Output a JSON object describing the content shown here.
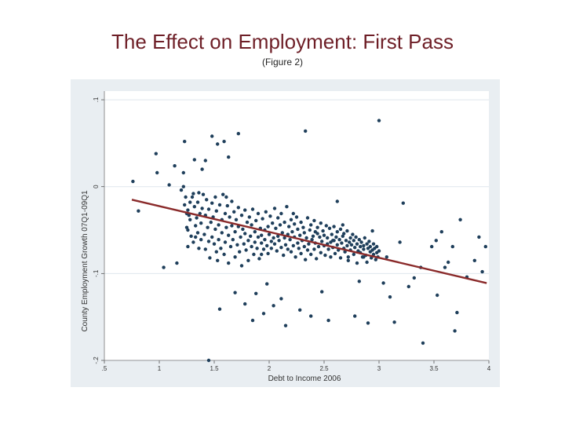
{
  "slide": {
    "title": "The Effect on Employment: First Pass",
    "subtitle": "(Figure 2)"
  },
  "colors": {
    "title": "#6e1f27",
    "panel_bg": "#e9eef2",
    "plot_bg": "#ffffff",
    "points": "#1f3f5b",
    "fit_line": "#8a2a2a",
    "grid": "#dfe7ee"
  },
  "chart_data": {
    "type": "scatter",
    "title": "",
    "xlabel": "Debt to Income 2006",
    "ylabel": "County Employment Growth 07Q1-09Q1",
    "xlim": [
      0.5,
      4.0
    ],
    "ylim": [
      -0.2,
      0.11
    ],
    "xticks": [
      ".5",
      "1",
      "1.5",
      "2",
      "2.5",
      "3",
      "3.5",
      "4"
    ],
    "yticks": [
      "-.2",
      "-.1",
      "0",
      ".1"
    ],
    "grid": true,
    "legend": "none",
    "fit_line": {
      "x": [
        0.75,
        3.98
      ],
      "y": [
        -0.015,
        -0.111
      ]
    },
    "points": [
      [
        0.76,
        0.006
      ],
      [
        0.81,
        -0.028
      ],
      [
        0.97,
        0.038
      ],
      [
        0.98,
        0.016
      ],
      [
        1.04,
        -0.093
      ],
      [
        1.09,
        0.002
      ],
      [
        1.14,
        0.024
      ],
      [
        1.16,
        -0.088
      ],
      [
        1.22,
        0.016
      ],
      [
        1.23,
        0.052
      ],
      [
        1.25,
        -0.031
      ],
      [
        1.32,
        0.031
      ],
      [
        1.33,
        -0.058
      ],
      [
        1.36,
        -0.071
      ],
      [
        1.39,
        0.02
      ],
      [
        1.42,
        0.03
      ],
      [
        1.45,
        -0.2
      ],
      [
        1.48,
        0.058
      ],
      [
        1.53,
        0.049
      ],
      [
        1.55,
        -0.141
      ],
      [
        1.59,
        0.052
      ],
      [
        1.61,
        -0.012
      ],
      [
        1.63,
        0.034
      ],
      [
        1.69,
        -0.122
      ],
      [
        1.72,
        0.061
      ],
      [
        1.78,
        -0.135
      ],
      [
        1.85,
        -0.154
      ],
      [
        1.88,
        -0.123
      ],
      [
        1.93,
        -0.078
      ],
      [
        1.95,
        -0.146
      ],
      [
        1.98,
        -0.112
      ],
      [
        2.04,
        -0.137
      ],
      [
        2.11,
        -0.129
      ],
      [
        2.15,
        -0.16
      ],
      [
        2.22,
        -0.031
      ],
      [
        2.28,
        -0.142
      ],
      [
        2.33,
        0.064
      ],
      [
        2.38,
        -0.149
      ],
      [
        2.42,
        -0.052
      ],
      [
        2.48,
        -0.121
      ],
      [
        2.54,
        -0.154
      ],
      [
        2.58,
        -0.062
      ],
      [
        2.62,
        -0.017
      ],
      [
        2.67,
        -0.044
      ],
      [
        2.72,
        -0.081
      ],
      [
        2.78,
        -0.149
      ],
      [
        2.82,
        -0.109
      ],
      [
        2.86,
        -0.081
      ],
      [
        2.9,
        -0.157
      ],
      [
        2.94,
        -0.051
      ],
      [
        3.0,
        0.076
      ],
      [
        3.04,
        -0.111
      ],
      [
        3.07,
        -0.081
      ],
      [
        3.1,
        -0.127
      ],
      [
        3.14,
        -0.156
      ],
      [
        3.19,
        -0.064
      ],
      [
        3.22,
        -0.019
      ],
      [
        3.27,
        -0.115
      ],
      [
        3.32,
        -0.105
      ],
      [
        3.38,
        -0.093
      ],
      [
        3.4,
        -0.18
      ],
      [
        3.48,
        -0.069
      ],
      [
        3.52,
        -0.062
      ],
      [
        3.57,
        -0.052
      ],
      [
        3.6,
        -0.093
      ],
      [
        3.63,
        -0.087
      ],
      [
        3.67,
        -0.069
      ],
      [
        3.69,
        -0.166
      ],
      [
        3.71,
        -0.145
      ],
      [
        3.74,
        -0.038
      ],
      [
        3.8,
        -0.104
      ],
      [
        3.87,
        -0.085
      ],
      [
        3.91,
        -0.058
      ],
      [
        3.94,
        -0.098
      ],
      [
        3.97,
        -0.069
      ],
      [
        1.26,
        -0.069
      ],
      [
        3.53,
        -0.125
      ],
      [
        1.52,
        -0.075
      ],
      [
        1.2,
        -0.004
      ],
      [
        1.22,
        0.0
      ],
      [
        1.23,
        -0.021
      ],
      [
        1.24,
        -0.012
      ],
      [
        1.25,
        -0.047
      ],
      [
        1.26,
        -0.027
      ],
      [
        1.26,
        -0.05
      ],
      [
        1.27,
        -0.033
      ],
      [
        1.28,
        -0.018
      ],
      [
        1.28,
        -0.038
      ],
      [
        1.29,
        -0.057
      ],
      [
        1.3,
        -0.012
      ],
      [
        1.31,
        -0.008
      ],
      [
        1.31,
        -0.064
      ],
      [
        1.32,
        -0.023
      ],
      [
        1.33,
        -0.045
      ],
      [
        1.34,
        -0.036
      ],
      [
        1.35,
        -0.018
      ],
      [
        1.35,
        -0.053
      ],
      [
        1.36,
        -0.007
      ],
      [
        1.37,
        -0.031
      ],
      [
        1.38,
        -0.061
      ],
      [
        1.38,
        -0.042
      ],
      [
        1.39,
        -0.025
      ],
      [
        1.4,
        -0.009
      ],
      [
        1.41,
        -0.055
      ],
      [
        1.42,
        -0.033
      ],
      [
        1.42,
        -0.072
      ],
      [
        1.43,
        -0.015
      ],
      [
        1.44,
        -0.047
      ],
      [
        1.45,
        -0.063
      ],
      [
        1.45,
        -0.026
      ],
      [
        1.46,
        -0.082
      ],
      [
        1.47,
        -0.041
      ],
      [
        1.48,
        -0.019
      ],
      [
        1.48,
        -0.058
      ],
      [
        1.49,
        -0.035
      ],
      [
        1.5,
        -0.066
      ],
      [
        1.51,
        -0.012
      ],
      [
        1.51,
        -0.049
      ],
      [
        1.52,
        -0.028
      ],
      [
        1.53,
        -0.085
      ],
      [
        1.54,
        -0.044
      ],
      [
        1.54,
        -0.061
      ],
      [
        1.55,
        -0.021
      ],
      [
        1.56,
        -0.071
      ],
      [
        1.57,
        -0.038
      ],
      [
        1.57,
        -0.053
      ],
      [
        1.58,
        -0.009
      ],
      [
        1.59,
        -0.078
      ],
      [
        1.6,
        -0.031
      ],
      [
        1.6,
        -0.064
      ],
      [
        1.61,
        -0.047
      ],
      [
        1.62,
        -0.022
      ],
      [
        1.63,
        -0.088
      ],
      [
        1.63,
        -0.056
      ],
      [
        1.64,
        -0.035
      ],
      [
        1.65,
        -0.069
      ],
      [
        1.66,
        -0.017
      ],
      [
        1.66,
        -0.045
      ],
      [
        1.67,
        -0.061
      ],
      [
        1.68,
        -0.029
      ],
      [
        1.69,
        -0.081
      ],
      [
        1.69,
        -0.052
      ],
      [
        1.7,
        -0.038
      ],
      [
        1.71,
        -0.067
      ],
      [
        1.72,
        -0.024
      ],
      [
        1.72,
        -0.046
      ],
      [
        1.73,
        -0.075
      ],
      [
        1.74,
        -0.058
      ],
      [
        1.75,
        -0.033
      ],
      [
        1.75,
        -0.091
      ],
      [
        1.76,
        -0.049
      ],
      [
        1.77,
        -0.066
      ],
      [
        1.78,
        -0.027
      ],
      [
        1.78,
        -0.054
      ],
      [
        1.79,
        -0.073
      ],
      [
        1.8,
        -0.041
      ],
      [
        1.81,
        -0.062
      ],
      [
        1.81,
        -0.085
      ],
      [
        1.82,
        -0.035
      ],
      [
        1.83,
        -0.057
      ],
      [
        1.84,
        -0.069
      ],
      [
        1.84,
        -0.044
      ],
      [
        1.85,
        -0.026
      ],
      [
        1.86,
        -0.078
      ],
      [
        1.87,
        -0.052
      ],
      [
        1.87,
        -0.064
      ],
      [
        1.88,
        -0.039
      ],
      [
        1.89,
        -0.071
      ],
      [
        1.9,
        -0.058
      ],
      [
        1.9,
        -0.031
      ],
      [
        1.91,
        -0.083
      ],
      [
        1.92,
        -0.048
      ],
      [
        1.93,
        -0.065
      ],
      [
        1.93,
        -0.056
      ],
      [
        1.94,
        -0.037
      ],
      [
        1.95,
        -0.072
      ],
      [
        1.96,
        -0.05
      ],
      [
        1.96,
        -0.061
      ],
      [
        1.97,
        -0.029
      ],
      [
        1.98,
        -0.068
      ],
      [
        1.99,
        -0.046
      ],
      [
        1.99,
        -0.077
      ],
      [
        2.0,
        -0.055
      ],
      [
        2.01,
        -0.034
      ],
      [
        2.02,
        -0.063
      ],
      [
        2.02,
        -0.071
      ],
      [
        2.03,
        -0.042
      ],
      [
        2.04,
        -0.059
      ],
      [
        2.05,
        -0.025
      ],
      [
        2.05,
        -0.066
      ],
      [
        2.06,
        -0.048
      ],
      [
        2.07,
        -0.074
      ],
      [
        2.08,
        -0.036
      ],
      [
        2.08,
        -0.057
      ],
      [
        2.09,
        -0.062
      ],
      [
        2.1,
        -0.044
      ],
      [
        2.11,
        -0.07
      ],
      [
        2.11,
        -0.031
      ],
      [
        2.12,
        -0.053
      ],
      [
        2.13,
        -0.079
      ],
      [
        2.14,
        -0.059
      ],
      [
        2.14,
        -0.041
      ],
      [
        2.15,
        -0.067
      ],
      [
        2.16,
        -0.023
      ],
      [
        2.17,
        -0.055
      ],
      [
        2.17,
        -0.072
      ],
      [
        2.18,
        -0.046
      ],
      [
        2.19,
        -0.061
      ],
      [
        2.2,
        -0.038
      ],
      [
        2.2,
        -0.075
      ],
      [
        2.21,
        -0.052
      ],
      [
        2.22,
        -0.068
      ],
      [
        2.23,
        -0.043
      ],
      [
        2.23,
        -0.058
      ],
      [
        2.24,
        -0.081
      ],
      [
        2.25,
        -0.035
      ],
      [
        2.26,
        -0.065
      ],
      [
        2.26,
        -0.049
      ],
      [
        2.27,
        -0.071
      ],
      [
        2.28,
        -0.056
      ],
      [
        2.29,
        -0.041
      ],
      [
        2.29,
        -0.077
      ],
      [
        2.3,
        -0.062
      ],
      [
        2.31,
        -0.047
      ],
      [
        2.32,
        -0.069
      ],
      [
        2.32,
        -0.053
      ],
      [
        2.33,
        -0.084
      ],
      [
        2.34,
        -0.059
      ],
      [
        2.35,
        -0.036
      ],
      [
        2.35,
        -0.073
      ],
      [
        2.36,
        -0.066
      ],
      [
        2.37,
        -0.05
      ],
      [
        2.38,
        -0.078
      ],
      [
        2.38,
        -0.044
      ],
      [
        2.39,
        -0.061
      ],
      [
        2.4,
        -0.057
      ],
      [
        2.41,
        -0.072
      ],
      [
        2.41,
        -0.039
      ],
      [
        2.42,
        -0.065
      ],
      [
        2.43,
        -0.083
      ],
      [
        2.44,
        -0.054
      ],
      [
        2.44,
        -0.047
      ],
      [
        2.45,
        -0.069
      ],
      [
        2.46,
        -0.058
      ],
      [
        2.47,
        -0.076
      ],
      [
        2.47,
        -0.042
      ],
      [
        2.48,
        -0.063
      ],
      [
        2.49,
        -0.051
      ],
      [
        2.5,
        -0.068
      ],
      [
        2.5,
        -0.056
      ],
      [
        2.51,
        -0.079
      ],
      [
        2.52,
        -0.045
      ],
      [
        2.53,
        -0.066
      ],
      [
        2.53,
        -0.059
      ],
      [
        2.54,
        -0.072
      ],
      [
        2.55,
        -0.048
      ],
      [
        2.56,
        -0.064
      ],
      [
        2.56,
        -0.081
      ],
      [
        2.57,
        -0.055
      ],
      [
        2.58,
        -0.07
      ],
      [
        2.59,
        -0.046
      ],
      [
        2.59,
        -0.062
      ],
      [
        2.6,
        -0.077
      ],
      [
        2.61,
        -0.058
      ],
      [
        2.62,
        -0.067
      ],
      [
        2.62,
        -0.052
      ],
      [
        2.63,
        -0.073
      ],
      [
        2.64,
        -0.061
      ],
      [
        2.65,
        -0.049
      ],
      [
        2.65,
        -0.082
      ],
      [
        2.66,
        -0.065
      ],
      [
        2.67,
        -0.057
      ],
      [
        2.68,
        -0.071
      ],
      [
        2.68,
        -0.054
      ],
      [
        2.69,
        -0.075
      ],
      [
        2.7,
        -0.062
      ],
      [
        2.71,
        -0.068
      ],
      [
        2.71,
        -0.051
      ],
      [
        2.72,
        -0.085
      ],
      [
        2.73,
        -0.064
      ],
      [
        2.74,
        -0.059
      ],
      [
        2.74,
        -0.073
      ],
      [
        2.75,
        -0.067
      ],
      [
        2.76,
        -0.055
      ],
      [
        2.77,
        -0.078
      ],
      [
        2.77,
        -0.062
      ],
      [
        2.78,
        -0.07
      ],
      [
        2.79,
        -0.058
      ],
      [
        2.8,
        -0.088
      ],
      [
        2.8,
        -0.066
      ],
      [
        2.81,
        -0.074
      ],
      [
        2.82,
        -0.061
      ],
      [
        2.83,
        -0.069
      ],
      [
        2.83,
        -0.076
      ],
      [
        2.84,
        -0.064
      ],
      [
        2.85,
        -0.081
      ],
      [
        2.86,
        -0.068
      ],
      [
        2.86,
        -0.072
      ],
      [
        2.87,
        -0.059
      ],
      [
        2.88,
        -0.079
      ],
      [
        2.89,
        -0.066
      ],
      [
        2.89,
        -0.087
      ],
      [
        2.9,
        -0.071
      ],
      [
        2.91,
        -0.063
      ],
      [
        2.92,
        -0.075
      ],
      [
        2.92,
        -0.069
      ],
      [
        2.93,
        -0.082
      ],
      [
        2.94,
        -0.073
      ],
      [
        2.95,
        -0.066
      ],
      [
        2.95,
        -0.078
      ],
      [
        2.96,
        -0.071
      ],
      [
        2.97,
        -0.084
      ],
      [
        2.98,
        -0.069
      ],
      [
        2.98,
        -0.076
      ],
      [
        2.99,
        -0.081
      ],
      [
        3.0,
        -0.074
      ]
    ]
  }
}
